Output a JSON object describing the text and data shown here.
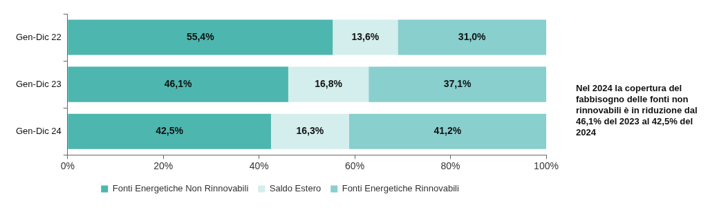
{
  "chart_data": {
    "type": "bar",
    "orientation": "horizontal",
    "stacked": true,
    "categories": [
      "Gen-Dic 22",
      "Gen-Dic 23",
      "Gen-Dic 24"
    ],
    "series": [
      {
        "name": "Fonti Energetiche Non Rinnovabili",
        "color": "#4db6ae",
        "values": [
          55.4,
          46.1,
          42.5
        ],
        "value_labels": [
          "55,4%",
          "46,1%",
          "42,5%"
        ]
      },
      {
        "name": "Saldo Estero",
        "color": "#d3eeec",
        "values": [
          13.6,
          16.8,
          16.3
        ],
        "value_labels": [
          "13,6%",
          "16,8%",
          "16,3%"
        ]
      },
      {
        "name": "Fonti Energetiche Rinnovabili",
        "color": "#88cfce",
        "values": [
          31.0,
          37.1,
          41.2
        ],
        "value_labels": [
          "31,0%",
          "37,1%",
          "41,2%"
        ]
      }
    ],
    "xlim": [
      0,
      100
    ],
    "xticks": [
      {
        "value": 0,
        "label": "0%"
      },
      {
        "value": 20,
        "label": "20%"
      },
      {
        "value": 40,
        "label": "40%"
      },
      {
        "value": 60,
        "label": "60%"
      },
      {
        "value": 80,
        "label": "80%"
      },
      {
        "value": 100,
        "label": "100%"
      }
    ],
    "legend": "bottom",
    "grid": false,
    "annotations": [
      "Nel 2024 la copertura del fabbisogno delle fonti non rinnovabili è in riduzione dal 46,1% del 2023 al 42,5% del 2024"
    ]
  }
}
